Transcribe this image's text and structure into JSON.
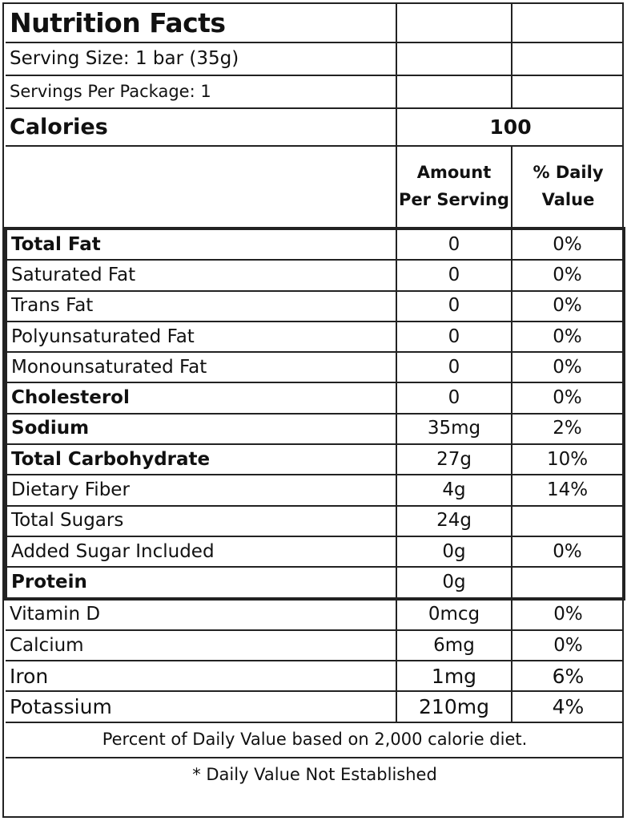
{
  "title": "Nutrition Facts",
  "serving_size": "Serving Size: 1 bar (35g)",
  "servings_per_package": "Servings Per Package: 1",
  "calories": {
    "label": "Calories",
    "value": "100"
  },
  "columns": {
    "amount": "Amount Per Serving",
    "daily_value": "% Daily Value"
  },
  "nutrients": [
    {
      "name": "Total Fat",
      "amount": "0",
      "dv": "0%",
      "bold": true
    },
    {
      "name": "Saturated Fat",
      "amount": "0",
      "dv": "0%",
      "bold": false
    },
    {
      "name": "Trans Fat",
      "amount": "0",
      "dv": "0%",
      "bold": false
    },
    {
      "name": "Polyunsaturated Fat",
      "amount": "0",
      "dv": "0%",
      "bold": false
    },
    {
      "name": "Monounsaturated Fat",
      "amount": "0",
      "dv": "0%",
      "bold": false
    },
    {
      "name": "Cholesterol",
      "amount": "0",
      "dv": "0%",
      "bold": true
    },
    {
      "name": "Sodium",
      "amount": "35mg",
      "dv": "2%",
      "bold": true
    },
    {
      "name": "Total Carbohydrate",
      "amount": "27g",
      "dv": "10%",
      "bold": true
    },
    {
      "name": "Dietary Fiber",
      "amount": "4g",
      "dv": "14%",
      "bold": false
    },
    {
      "name": "Total Sugars",
      "amount": "24g",
      "dv": "",
      "bold": false
    },
    {
      "name": "Added Sugar Included",
      "amount": "0g",
      "dv": "0%",
      "bold": false
    },
    {
      "name": "Protein",
      "amount": "0g",
      "dv": "",
      "bold": true
    }
  ],
  "vitamins": [
    {
      "name": "Vitamin D",
      "amount": "0mcg",
      "dv": "0%"
    },
    {
      "name": "Calcium",
      "amount": "6mg",
      "dv": "0%"
    },
    {
      "name": "Iron",
      "amount": "1mg",
      "dv": "6%"
    },
    {
      "name": "Potassium",
      "amount": "210mg",
      "dv": "4%"
    }
  ],
  "footnote": "Percent of Daily Value based on 2,000 calorie diet.",
  "footnote2": "* Daily Value Not Established"
}
